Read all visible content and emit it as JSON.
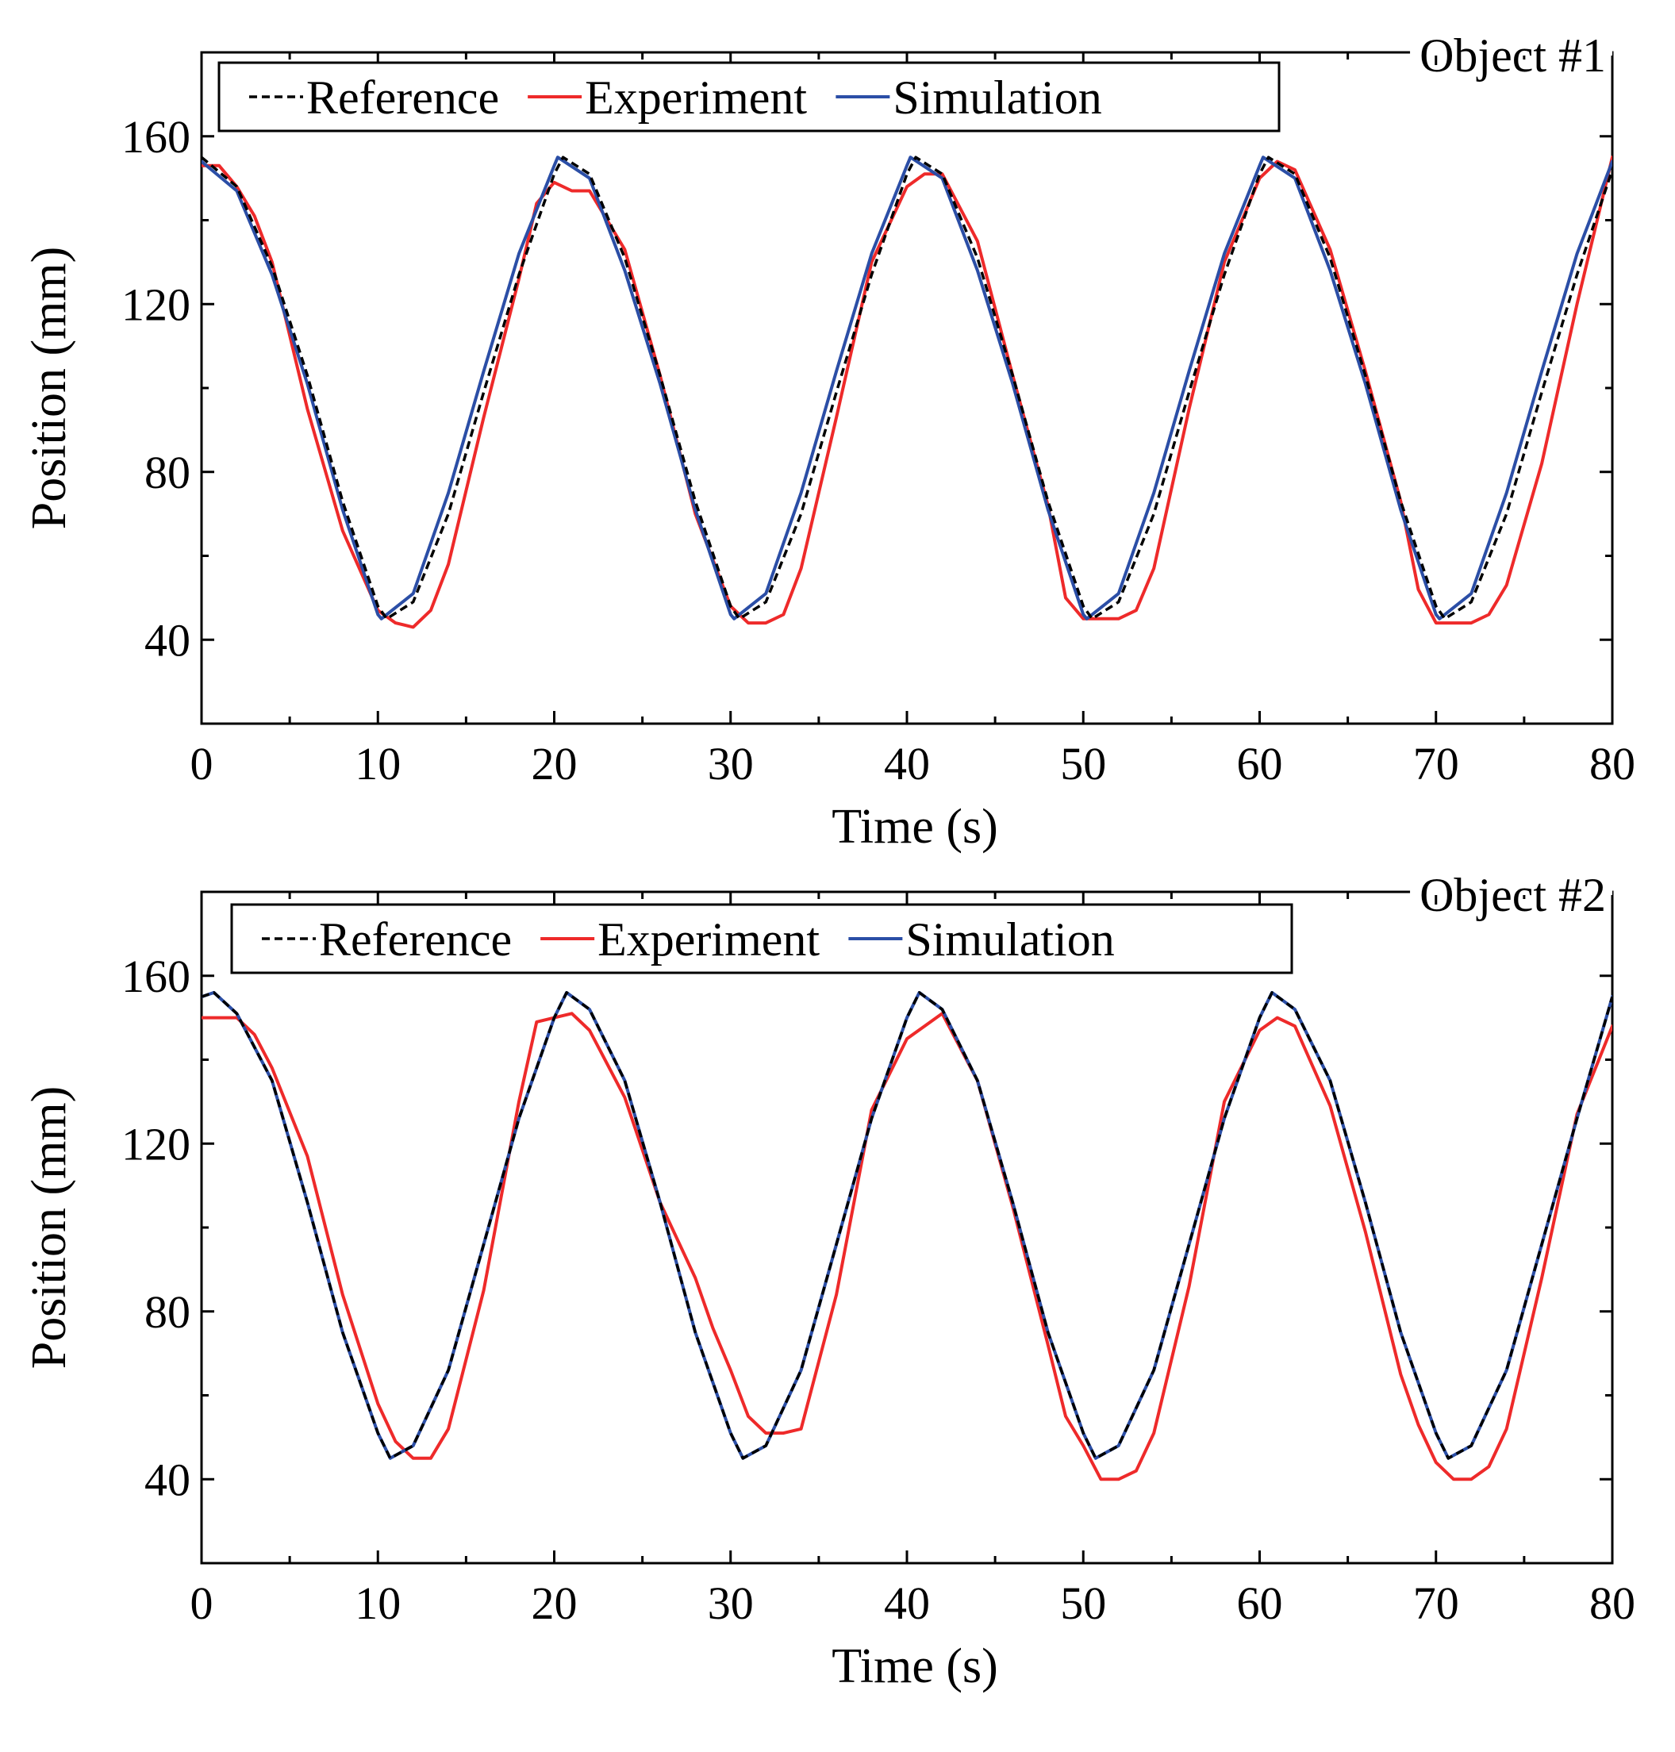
{
  "figure": {
    "colors": {
      "reference": "#000000",
      "experiment": "#ee2a2a",
      "simulation": "#2b4ea6",
      "axis": "#000000"
    },
    "chart_data": [
      {
        "type": "line",
        "panel_label": "Object #1",
        "xlabel": "Time (s)",
        "ylabel": "Position (mm)",
        "xlim": [
          0,
          80
        ],
        "ylim": [
          20,
          180
        ],
        "xticks": [
          0,
          10,
          20,
          30,
          40,
          50,
          60,
          70,
          80
        ],
        "yticks": [
          40,
          80,
          120,
          160
        ],
        "legend": {
          "placement": "top-left",
          "entries": [
            "Reference",
            "Experiment",
            "Simulation"
          ]
        },
        "series": [
          {
            "name": "Reference",
            "style": "dashed",
            "x": [
              0,
              2,
              4,
              6,
              8,
              10,
              10.5,
              12,
              14,
              16,
              18,
              20,
              20.5,
              22,
              24,
              26,
              28,
              30,
              30.5,
              32,
              34,
              36,
              38,
              40,
              40.5,
              42,
              44,
              46,
              48,
              50,
              50.5,
              52,
              54,
              56,
              58,
              60,
              60.5,
              62,
              64,
              66,
              68,
              70,
              70.5,
              72,
              74,
              76,
              78,
              80
            ],
            "y": [
              155,
              148,
              129,
              103,
              73,
              48,
              45,
              49,
              70,
              99,
              127,
              151,
              155,
              151,
              131,
              103,
              73,
              48,
              45,
              49,
              70,
              99,
              127,
              151,
              155,
              151,
              131,
              103,
              73,
              48,
              45,
              49,
              70,
              99,
              127,
              151,
              155,
              151,
              131,
              103,
              73,
              48,
              45,
              49,
              70,
              99,
              127,
              152
            ]
          },
          {
            "name": "Experiment",
            "style": "solid",
            "x": [
              0,
              1,
              2,
              3,
              4,
              6,
              8,
              10,
              11,
              12,
              13,
              14,
              16,
              18,
              19,
              20,
              21,
              22,
              24,
              26,
              28,
              30,
              31,
              32,
              33,
              34,
              36,
              38,
              40,
              41,
              42,
              44,
              46,
              48,
              49,
              50,
              51,
              52,
              53,
              54,
              56,
              58,
              60,
              61,
              62,
              64,
              66,
              68,
              69,
              70,
              71,
              72,
              73,
              74,
              76,
              78,
              80
            ],
            "y": [
              153,
              153,
              148,
              141,
              130,
              95,
              66,
              47,
              44,
              43,
              47,
              58,
              93,
              126,
              144,
              149,
              147,
              147,
              133,
              103,
              70,
              48,
              44,
              44,
              46,
              57,
              93,
              130,
              148,
              151,
              151,
              135,
              103,
              72,
              50,
              45,
              45,
              45,
              47,
              57,
              95,
              130,
              150,
              154,
              152,
              133,
              104,
              73,
              52,
              44,
              44,
              44,
              46,
              53,
              82,
              120,
              155
            ]
          },
          {
            "name": "Simulation",
            "style": "solid",
            "x": [
              0,
              2,
              4,
              6,
              8,
              10,
              10.2,
              12,
              14,
              16,
              18,
              20,
              20.2,
              22,
              24,
              26,
              28,
              30,
              30.2,
              32,
              34,
              36,
              38,
              40,
              40.2,
              42,
              44,
              46,
              48,
              50,
              50.2,
              52,
              54,
              56,
              58,
              60,
              60.2,
              62,
              64,
              66,
              68,
              70,
              70.2,
              72,
              74,
              76,
              78,
              80
            ],
            "y": [
              154,
              147,
              127,
              101,
              71,
              46,
              45,
              51,
              75,
              104,
              132,
              153,
              155,
              150,
              128,
              101,
              71,
              46,
              45,
              51,
              75,
              104,
              132,
              153,
              155,
              150,
              128,
              101,
              71,
              46,
              45,
              51,
              75,
              104,
              132,
              153,
              155,
              150,
              128,
              101,
              71,
              46,
              45,
              51,
              75,
              104,
              132,
              154
            ]
          }
        ]
      },
      {
        "type": "line",
        "panel_label": "Object #2",
        "xlabel": "Time (s)",
        "ylabel": "Position (mm)",
        "xlim": [
          0,
          80
        ],
        "ylim": [
          20,
          180
        ],
        "xticks": [
          0,
          10,
          20,
          30,
          40,
          50,
          60,
          70,
          80
        ],
        "yticks": [
          40,
          80,
          120,
          160
        ],
        "legend": {
          "placement": "top-left",
          "entries": [
            "Reference",
            "Experiment",
            "Simulation"
          ]
        },
        "series": [
          {
            "name": "Reference",
            "style": "dashed",
            "x": [
              0,
              0.7,
              2,
              4,
              6,
              8,
              10,
              10.7,
              12,
              14,
              16,
              18,
              20,
              20.7,
              22,
              24,
              26,
              28,
              30,
              30.7,
              32,
              34,
              36,
              38,
              40,
              40.7,
              42,
              44,
              46,
              48,
              50,
              50.7,
              52,
              54,
              56,
              58,
              60,
              60.7,
              62,
              64,
              66,
              68,
              70,
              70.7,
              72,
              74,
              76,
              78,
              80
            ],
            "y": [
              155,
              156,
              151,
              135,
              106,
              75,
              51,
              45,
              48,
              66,
              96,
              126,
              150,
              156,
              152,
              135,
              106,
              75,
              51,
              45,
              48,
              66,
              96,
              126,
              150,
              156,
              152,
              135,
              106,
              75,
              51,
              45,
              48,
              66,
              96,
              126,
              150,
              156,
              152,
              135,
              106,
              75,
              51,
              45,
              48,
              66,
              96,
              126,
              155
            ]
          },
          {
            "name": "Experiment",
            "style": "solid",
            "x": [
              0,
              1,
              2,
              3,
              4,
              6,
              8,
              10,
              11,
              12,
              13,
              14,
              16,
              18,
              19,
              20,
              21,
              22,
              24,
              26,
              28,
              29,
              30,
              31,
              32,
              33,
              34,
              36,
              38,
              40,
              41,
              42,
              44,
              46,
              48,
              49,
              50,
              51,
              52,
              53,
              54,
              56,
              58,
              60,
              61,
              62,
              64,
              66,
              68,
              69,
              70,
              71,
              72,
              73,
              74,
              76,
              78,
              80
            ],
            "y": [
              150,
              150,
              150,
              146,
              138,
              117,
              84,
              58,
              49,
              45,
              45,
              52,
              85,
              130,
              149,
              150,
              151,
              147,
              131,
              106,
              88,
              76,
              66,
              55,
              51,
              51,
              52,
              84,
              128,
              145,
              148,
              151,
              135,
              105,
              72,
              55,
              48,
              40,
              40,
              42,
              51,
              86,
              130,
              147,
              150,
              148,
              129,
              99,
              65,
              53,
              44,
              40,
              40,
              43,
              52,
              88,
              127,
              148
            ]
          },
          {
            "name": "Simulation",
            "style": "solid",
            "x": [
              0,
              0.7,
              2,
              4,
              6,
              8,
              10,
              10.7,
              12,
              14,
              16,
              18,
              20,
              20.7,
              22,
              24,
              26,
              28,
              30,
              30.7,
              32,
              34,
              36,
              38,
              40,
              40.7,
              42,
              44,
              46,
              48,
              50,
              50.7,
              52,
              54,
              56,
              58,
              60,
              60.7,
              62,
              64,
              66,
              68,
              70,
              70.7,
              72,
              74,
              76,
              78,
              80
            ],
            "y": [
              155,
              156,
              151,
              135,
              106,
              75,
              51,
              45,
              48,
              66,
              96,
              126,
              150,
              156,
              152,
              135,
              106,
              75,
              51,
              45,
              48,
              66,
              96,
              126,
              150,
              156,
              152,
              135,
              106,
              75,
              51,
              45,
              48,
              66,
              96,
              126,
              150,
              156,
              152,
              135,
              106,
              75,
              51,
              45,
              48,
              66,
              96,
              126,
              155
            ]
          }
        ]
      }
    ]
  }
}
